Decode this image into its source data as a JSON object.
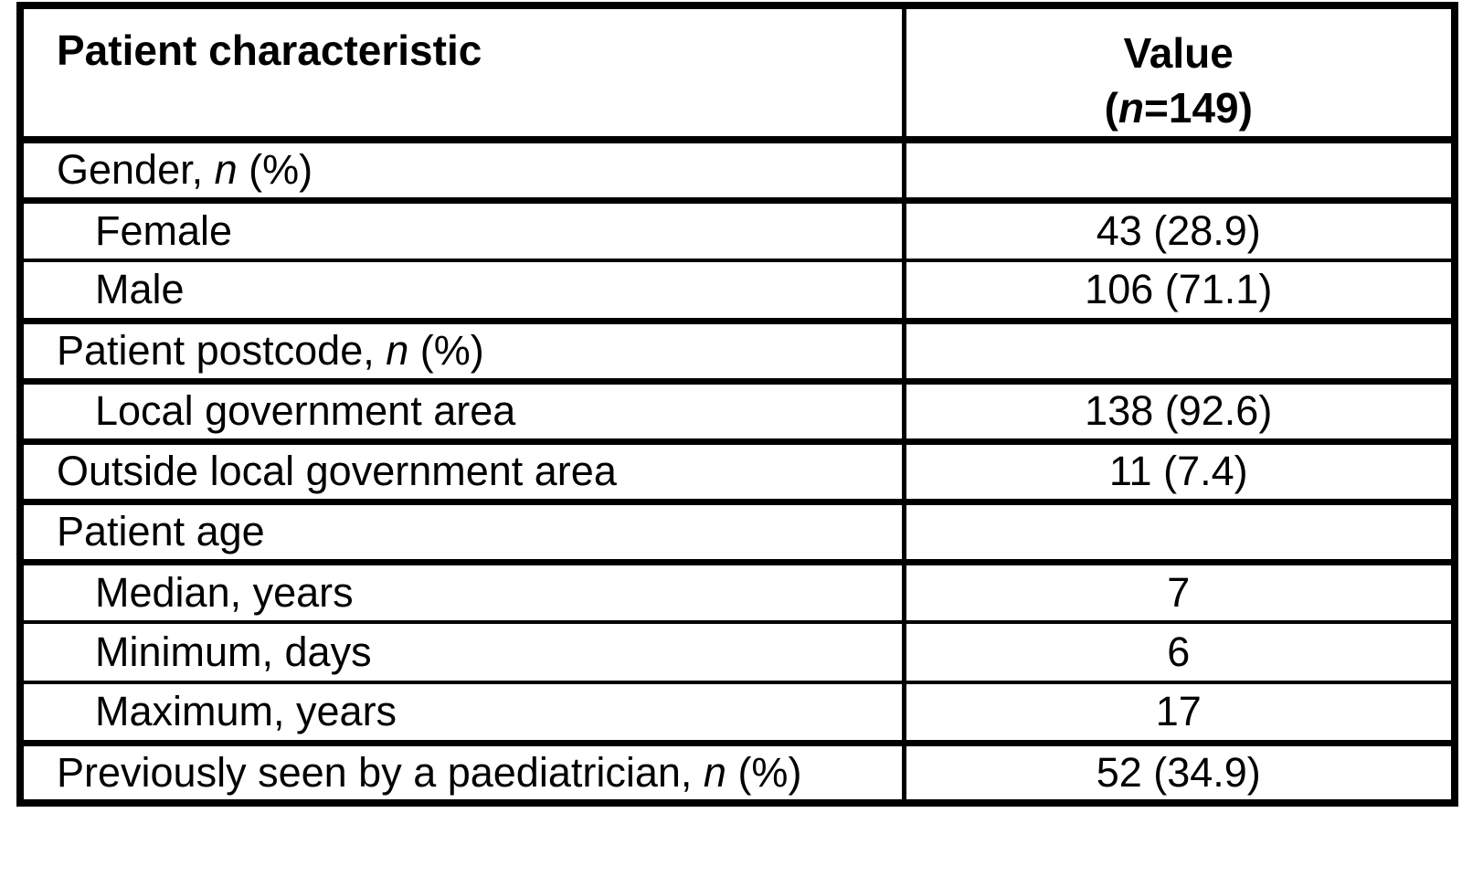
{
  "chart_data": {
    "type": "table",
    "columns": [
      "Patient characteristic",
      "Value (n=149)"
    ],
    "rows": [
      [
        "Gender, n (%)",
        ""
      ],
      [
        "Female",
        "43 (28.9)"
      ],
      [
        "Male",
        "106 (71.1)"
      ],
      [
        "Patient postcode, n (%)",
        ""
      ],
      [
        "Local government area",
        "138 (92.6)"
      ],
      [
        "Outside local government area",
        "11 (7.4)"
      ],
      [
        "Patient age",
        ""
      ],
      [
        "Median, years",
        "7"
      ],
      [
        "Minimum, days",
        "6"
      ],
      [
        "Maximum, years",
        "17"
      ],
      [
        "Previously seen by a paediatrician, n (%)",
        "52 (34.9)"
      ]
    ],
    "layout_hints": {
      "grid": "on",
      "value_column_alignment": "center",
      "indented_rows": [
        "Female",
        "Male",
        "Local government area",
        "Median, years",
        "Minimum, days",
        "Maximum, years"
      ]
    }
  },
  "table": {
    "header": {
      "col1": "Patient characteristic",
      "col2_line1": "Value",
      "col2_prefix": "(",
      "col2_italic": "n",
      "col2_suffix": "=149)"
    },
    "rows": [
      {
        "prefix": "Gender, ",
        "italic": "n",
        "suffix": " (%)",
        "value": "",
        "indent": "no",
        "group": "yes"
      },
      {
        "prefix": "Female",
        "italic": "",
        "suffix": "",
        "value": "43 (28.9)",
        "indent": "yes",
        "group": "no"
      },
      {
        "prefix": "Male",
        "italic": "",
        "suffix": "",
        "value": "106 (71.1)",
        "indent": "yes",
        "group": "no"
      },
      {
        "prefix": "Patient postcode, ",
        "italic": "n",
        "suffix": " (%)",
        "value": "",
        "indent": "no",
        "group": "yes"
      },
      {
        "prefix": "Local government area",
        "italic": "",
        "suffix": "",
        "value": "138 (92.6)",
        "indent": "yes",
        "group": "no"
      },
      {
        "prefix": "Outside local government area",
        "italic": "",
        "suffix": "",
        "value": "11 (7.4)",
        "indent": "no",
        "group": "yes"
      },
      {
        "prefix": "Patient age",
        "italic": "",
        "suffix": "",
        "value": "",
        "indent": "no",
        "group": "yes"
      },
      {
        "prefix": "Median, years",
        "italic": "",
        "suffix": "",
        "value": "7",
        "indent": "yes",
        "group": "no"
      },
      {
        "prefix": "Minimum, days",
        "italic": "",
        "suffix": "",
        "value": "6",
        "indent": "yes",
        "group": "no"
      },
      {
        "prefix": "Maximum, years",
        "italic": "",
        "suffix": "",
        "value": "17",
        "indent": "yes",
        "group": "no"
      },
      {
        "prefix": "Previously seen by a paediatrician, ",
        "italic": "n",
        "suffix": " (%)",
        "value": "52 (34.9)",
        "indent": "no",
        "group": "yes"
      }
    ],
    "colors": {
      "border": "#000000",
      "text": "#000000",
      "background": "#ffffff"
    }
  }
}
